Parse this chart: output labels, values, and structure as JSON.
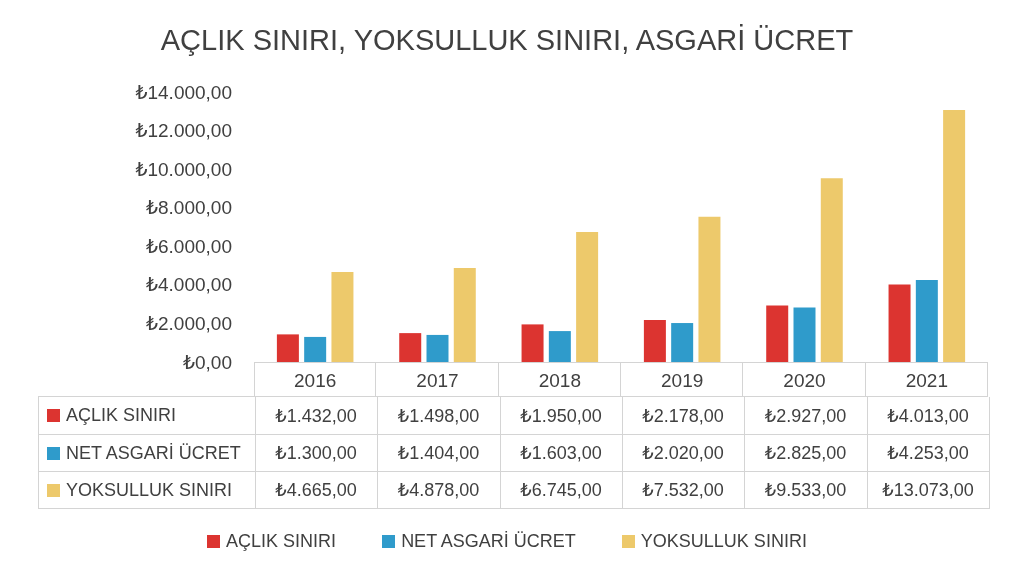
{
  "chart_data": {
    "type": "bar",
    "title": "AÇLIK SINIRI, YOKSULLUK SINIRI, ASGARİ ÜCRET",
    "categories": [
      "2016",
      "2017",
      "2018",
      "2019",
      "2020",
      "2021"
    ],
    "series": [
      {
        "name": "AÇLIK SINIRI",
        "color": "#dc3430",
        "values": [
          1432,
          1498,
          1950,
          2178,
          2927,
          4013
        ],
        "value_labels": [
          "₺1.432,00",
          "₺1.498,00",
          "₺1.950,00",
          "₺2.178,00",
          "₺2.927,00",
          "₺4.013,00"
        ]
      },
      {
        "name": "NET ASGARİ ÜCRET",
        "color": "#2f9bcb",
        "values": [
          1300,
          1404,
          1603,
          2020,
          2825,
          4253
        ],
        "value_labels": [
          "₺1.300,00",
          "₺1.404,00",
          "₺1.603,00",
          "₺2.020,00",
          "₺2.825,00",
          "₺4.253,00"
        ]
      },
      {
        "name": "YOKSULLUK SINIRI",
        "color": "#edc96b",
        "values": [
          4665,
          4878,
          6745,
          7532,
          9533,
          13073
        ],
        "value_labels": [
          "₺4.665,00",
          "₺4.878,00",
          "₺6.745,00",
          "₺7.532,00",
          "₺9.533,00",
          "₺13.073,00"
        ]
      }
    ],
    "ylim": [
      0,
      14000
    ],
    "yticks": [
      {
        "value": 0,
        "label": "₺0,00"
      },
      {
        "value": 2000,
        "label": "₺2.000,00"
      },
      {
        "value": 4000,
        "label": "₺4.000,00"
      },
      {
        "value": 6000,
        "label": "₺6.000,00"
      },
      {
        "value": 8000,
        "label": "₺8.000,00"
      },
      {
        "value": 10000,
        "label": "₺10.000,00"
      },
      {
        "value": 12000,
        "label": "₺12.000,00"
      },
      {
        "value": 14000,
        "label": "₺14.000,00"
      }
    ],
    "grid": false,
    "legend": "bottom"
  }
}
